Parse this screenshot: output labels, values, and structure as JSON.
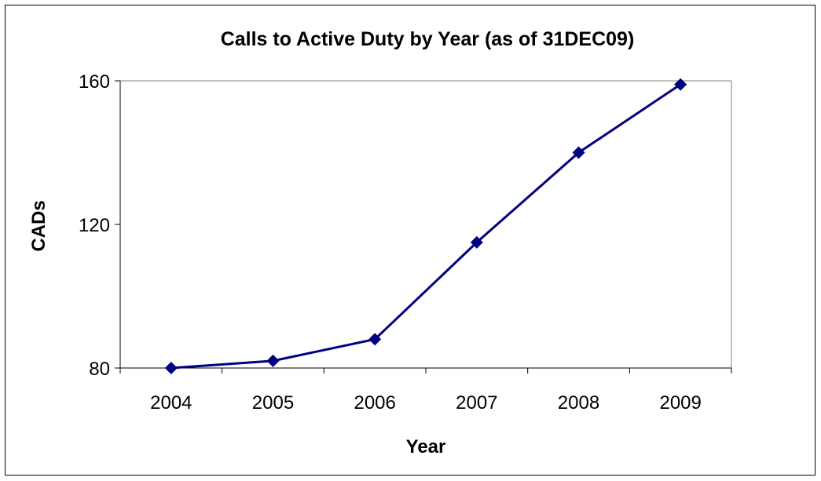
{
  "chart_data": {
    "type": "line",
    "title": "Calls to Active Duty by Year (as of 31DEC09)",
    "xlabel": "Year",
    "ylabel": "CADs",
    "categories": [
      "2004",
      "2005",
      "2006",
      "2007",
      "2008",
      "2009"
    ],
    "series": [
      {
        "values": [
          80,
          82,
          88,
          115,
          140,
          159
        ]
      }
    ],
    "ylim": [
      80,
      160
    ],
    "yticks": [
      80,
      120,
      160
    ],
    "grid": false,
    "legend": "none",
    "line_color": "#000080",
    "marker": "diamond"
  }
}
